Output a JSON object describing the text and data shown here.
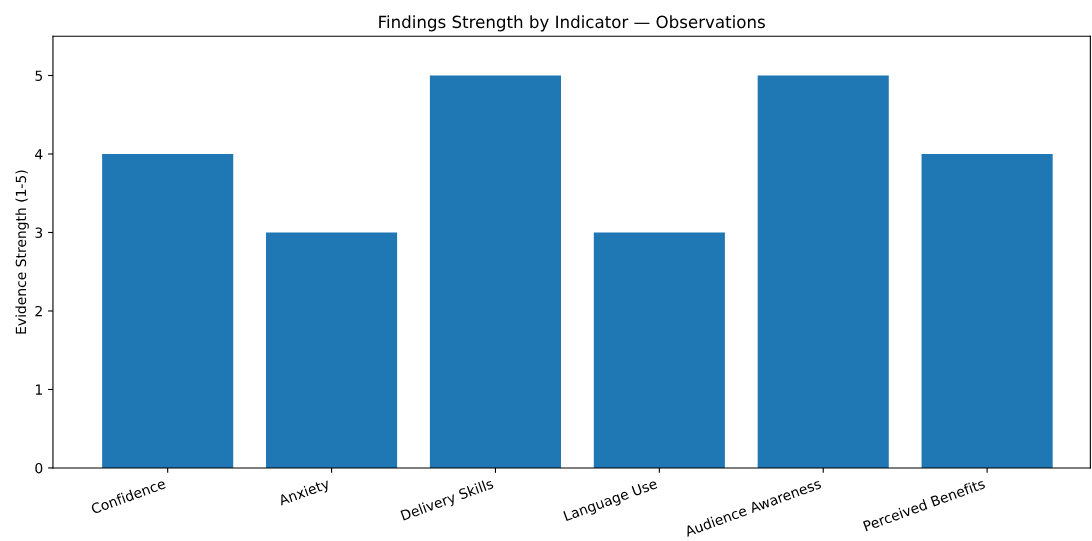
{
  "chart_data": {
    "type": "bar",
    "title": "Findings Strength by Indicator — Observations",
    "ylabel": "Evidence Strength (1-5)",
    "categories": [
      "Confidence",
      "Anxiety",
      "Delivery Skills",
      "Language Use",
      "Audience Awareness",
      "Perceived Benefits"
    ],
    "values": [
      4,
      3,
      5,
      3,
      5,
      4
    ],
    "color": "#1f77b4",
    "ylim": [
      0,
      5.5
    ],
    "yticks": [
      0,
      1,
      2,
      3,
      4,
      5
    ],
    "grid": false,
    "legend": false
  }
}
